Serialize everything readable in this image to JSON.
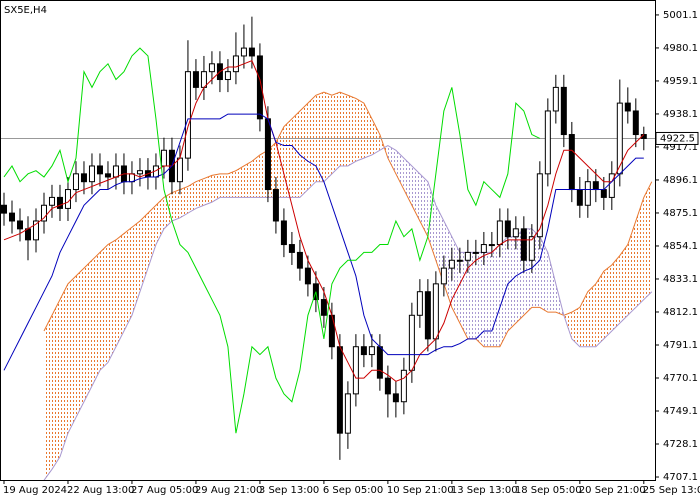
{
  "chart_data": {
    "type": "candlestick",
    "title": "SX5E,H4",
    "open": [
      4880,
      4875,
      4870,
      4865,
      4858,
      4870,
      4880,
      4885,
      4878,
      4890,
      4900,
      4895,
      4905,
      4900,
      4898,
      4905,
      4895,
      4900,
      4902,
      4898,
      4905,
      4915,
      4895,
      4910,
      4965,
      4955,
      4965,
      4970,
      4960,
      4965,
      4975,
      4980,
      4975,
      4935,
      4890,
      4870,
      4855,
      4850,
      4840,
      4830,
      4820,
      4810,
      4790,
      4735,
      4760,
      4790,
      4785,
      4790,
      4770,
      4760,
      4755,
      4775,
      4810,
      4825,
      4795,
      4830,
      4840,
      4845,
      4845,
      4850,
      4850,
      4855,
      4855,
      4870,
      4860,
      4865,
      4845,
      4860,
      4900,
      4940,
      4955,
      4925,
      4890,
      4880,
      4895,
      4890,
      4885,
      4900,
      4945,
      4940,
      4925,
      null
    ],
    "high": [
      4888,
      4883,
      4878,
      4873,
      4878,
      4888,
      4893,
      4893,
      4898,
      4908,
      4908,
      4913,
      4913,
      4908,
      4913,
      4913,
      4908,
      4910,
      4910,
      4913,
      4923,
      4923,
      4918,
      4985,
      4973,
      4975,
      4978,
      4978,
      4973,
      4990,
      4995,
      5000,
      4983,
      4943,
      4898,
      4878,
      4863,
      4858,
      4848,
      4838,
      4828,
      4818,
      4798,
      4768,
      4798,
      4798,
      4798,
      4798,
      4778,
      4768,
      4783,
      4818,
      4833,
      4833,
      4838,
      4848,
      4853,
      4853,
      4858,
      4858,
      4863,
      4863,
      4878,
      4878,
      4873,
      4873,
      4868,
      4908,
      4948,
      4963,
      4963,
      4933,
      4898,
      4903,
      4903,
      4898,
      4908,
      4960,
      4955,
      4948,
      4930,
      null
    ],
    "low": [
      4867,
      4862,
      4857,
      4845,
      4850,
      4862,
      4872,
      4870,
      4870,
      4882,
      4887,
      4887,
      4892,
      4890,
      4890,
      4887,
      4887,
      4892,
      4890,
      4890,
      4897,
      4887,
      4887,
      4902,
      4947,
      4947,
      4957,
      4952,
      4952,
      4957,
      4967,
      4967,
      4927,
      4882,
      4862,
      4847,
      4842,
      4832,
      4822,
      4812,
      4802,
      4782,
      4718,
      4725,
      4752,
      4777,
      4777,
      4762,
      4745,
      4745,
      4747,
      4767,
      4802,
      4787,
      4787,
      4822,
      4832,
      4837,
      4837,
      4842,
      4842,
      4847,
      4847,
      4852,
      4852,
      4837,
      4837,
      4852,
      4892,
      4932,
      4917,
      4882,
      4872,
      4872,
      4882,
      4877,
      4877,
      4892,
      4932,
      4917,
      4915,
      null
    ],
    "close": [
      4875,
      4870,
      4865,
      4858,
      4870,
      4880,
      4885,
      4878,
      4890,
      4900,
      4895,
      4905,
      4900,
      4898,
      4905,
      4895,
      4900,
      4902,
      4898,
      4905,
      4915,
      4895,
      4910,
      4965,
      4955,
      4965,
      4970,
      4960,
      4965,
      4975,
      4980,
      4975,
      4935,
      4890,
      4870,
      4855,
      4850,
      4840,
      4830,
      4820,
      4810,
      4790,
      4735,
      4760,
      4790,
      4785,
      4790,
      4770,
      4760,
      4755,
      4775,
      4810,
      4825,
      4795,
      4830,
      4840,
      4845,
      4845,
      4850,
      4850,
      4855,
      4855,
      4870,
      4860,
      4865,
      4845,
      4860,
      4900,
      4940,
      4955,
      4925,
      4890,
      4880,
      4895,
      4890,
      4885,
      4900,
      4945,
      4940,
      4925,
      4922.5,
      null
    ],
    "lines": [
      {
        "color": "#cc0000",
        "values": [
          4858,
          4860,
          4862,
          4865,
          4868,
          4872,
          4878,
          4880,
          4882,
          4888,
          4890,
          4892,
          4894,
          4896,
          4898,
          4900,
          4900,
          4898,
          4900,
          4902,
          4905,
          4905,
          4910,
          4930,
          4945,
          4955,
          4960,
          4965,
          4968,
          4968,
          4970,
          4972,
          4960,
          4935,
          4920,
          4900,
          4880,
          4860,
          4845,
          4835,
          4825,
          4810,
          4790,
          4780,
          4770,
          4770,
          4775,
          4775,
          4772,
          4768,
          4770,
          4775,
          4785,
          4790,
          4795,
          4805,
          4820,
          4830,
          4840,
          4845,
          4848,
          4850,
          4855,
          4858,
          4858,
          4858,
          4858,
          4865,
          4880,
          4900,
          4915,
          4915,
          4910,
          4905,
          4900,
          4895,
          4895,
          4905,
          4915,
          4920,
          4925,
          null
        ]
      },
      {
        "color": "#0000bb",
        "values": [
          4775,
          4785,
          4795,
          4805,
          4815,
          4825,
          4835,
          4850,
          4860,
          4870,
          4880,
          4885,
          4890,
          4890,
          4893,
          4895,
          4895,
          4897,
          4898,
          4898,
          4900,
          4905,
          4920,
          4935,
          4935,
          4935,
          4935,
          4935,
          4938,
          4938,
          4938,
          4938,
          4938,
          4935,
          4920,
          4918,
          4918,
          4912,
          4908,
          4905,
          4895,
          4880,
          4865,
          4850,
          4835,
          4810,
          4795,
          4790,
          4785,
          4785,
          4785,
          4785,
          4785,
          4785,
          4788,
          4790,
          4790,
          4792,
          4795,
          4795,
          4800,
          4800,
          4815,
          4830,
          4835,
          4838,
          4840,
          4845,
          4865,
          4890,
          4890,
          4890,
          4890,
          4890,
          4890,
          4890,
          4895,
          4900,
          4905,
          4910,
          4910,
          null
        ]
      },
      {
        "color": "#00dd00",
        "values": [
          4898,
          4905,
          4895,
          4900,
          4902,
          4898,
          4905,
          4915,
          4895,
          4910,
          4965,
          4955,
          4965,
          4970,
          4960,
          4965,
          4975,
          4980,
          4975,
          4935,
          4890,
          4870,
          4855,
          4850,
          4840,
          4830,
          4820,
          4810,
          4790,
          4735,
          4760,
          4790,
          4785,
          4790,
          4770,
          4760,
          4755,
          4775,
          4810,
          4825,
          4795,
          4830,
          4840,
          4845,
          4845,
          4850,
          4850,
          4855,
          4855,
          4870,
          4860,
          4865,
          4845,
          4860,
          4900,
          4940,
          4955,
          4925,
          4890,
          4880,
          4895,
          4890,
          4885,
          4900,
          4945,
          4940,
          4925,
          4922.5,
          null,
          null,
          null,
          null,
          null,
          null,
          null,
          null,
          null,
          null,
          null,
          null,
          null,
          null
        ]
      }
    ],
    "cloud": {
      "up_color": "#e87830",
      "down_color": "#a898d0",
      "span_a": [
        null,
        null,
        null,
        null,
        null,
        4800,
        4810,
        4820,
        4830,
        4835,
        4840,
        4845,
        4850,
        4855,
        4858,
        4862,
        4866,
        4870,
        4875,
        4880,
        4885,
        4888,
        4890,
        4892,
        4895,
        4897,
        4899,
        4900,
        4900,
        4902,
        4905,
        4908,
        4912,
        4915,
        4920,
        4930,
        4935,
        4940,
        4945,
        4950,
        4952,
        4950,
        4952,
        4950,
        4948,
        4945,
        4935,
        4925,
        4910,
        4900,
        4890,
        4880,
        4870,
        4860,
        4845,
        4830,
        4815,
        4805,
        4795,
        4795,
        4790,
        4790,
        4790,
        4800,
        4805,
        4810,
        4815,
        4815,
        4812,
        4812,
        4810,
        4812,
        4815,
        4825,
        4830,
        4838,
        4842,
        4848,
        4855,
        4870,
        4885,
        4895
      ],
      "span_b": [
        null,
        null,
        null,
        null,
        null,
        4705,
        4712,
        4720,
        4735,
        4745,
        4755,
        4765,
        4775,
        4780,
        4790,
        4800,
        4810,
        4825,
        4840,
        4855,
        4865,
        4870,
        4872,
        4875,
        4878,
        4880,
        4882,
        4885,
        4885,
        4885,
        4885,
        4885,
        4885,
        4885,
        4885,
        4885,
        4885,
        4885,
        4890,
        4895,
        4895,
        4900,
        4905,
        4905,
        4908,
        4910,
        4912,
        4915,
        4918,
        4915,
        4910,
        4905,
        4900,
        4895,
        4880,
        4870,
        4860,
        4850,
        4850,
        4850,
        4850,
        4850,
        4855,
        4860,
        4860,
        4865,
        4865,
        4860,
        4850,
        4830,
        4810,
        4795,
        4790,
        4790,
        4790,
        4795,
        4800,
        4805,
        4810,
        4815,
        4820,
        4825
      ]
    },
    "last_price": 4922.5,
    "xlim": [
      -0.5,
      81.4
    ],
    "xticks": [
      {
        "value": 0,
        "label": "19 Aug 2024"
      },
      {
        "value": 8,
        "label": "22 Aug 13:00"
      },
      {
        "value": 16,
        "label": "27 Aug 05:00"
      },
      {
        "value": 24,
        "label": "29 Aug 21:00"
      },
      {
        "value": 32,
        "label": "3 Sep 13:00"
      },
      {
        "value": 40,
        "label": "6 Sep 05:00"
      },
      {
        "value": 48,
        "label": "10 Sep 21:00"
      },
      {
        "value": 56,
        "label": "13 Sep 13:00"
      },
      {
        "value": 64,
        "label": "18 Sep 05:00"
      },
      {
        "value": 72,
        "label": "20 Sep 21:00"
      },
      {
        "value": 80,
        "label": "25 Sep 13:00"
      }
    ],
    "ylim": [
      4705.2,
      5010.6
    ],
    "yticks": [
      5001.1,
      4980.1,
      4959.1,
      4938.1,
      4917.1,
      4896.1,
      4875.1,
      4854.1,
      4833.1,
      4812.1,
      4791.1,
      4770.1,
      4749.1,
      4728.1,
      4707.1
    ]
  }
}
